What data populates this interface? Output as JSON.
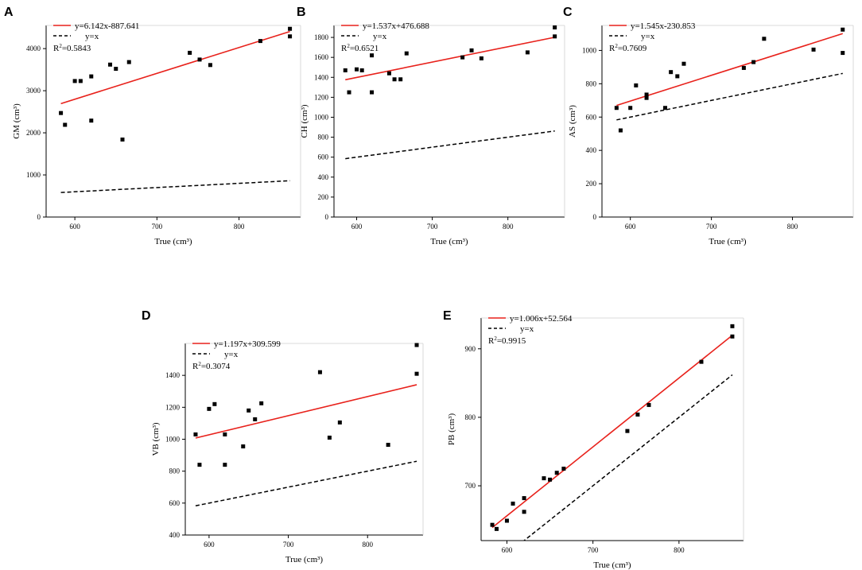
{
  "chart_data": [
    {
      "type": "scatter",
      "panel": "A",
      "xlabel": "True (cm³)",
      "ylabel": "GM (cm³)",
      "xlim": [
        565,
        875
      ],
      "ylim": [
        0,
        4550
      ],
      "xticks": [
        600,
        700,
        800
      ],
      "yticks": [
        0,
        1000,
        2000,
        3000,
        4000
      ],
      "legend": {
        "fit": "y=6.142x-887.641",
        "identity": "y=x",
        "r2": "0.5843"
      },
      "fit": {
        "slope": 6.142,
        "intercept": -887.641
      },
      "points": [
        [
          583,
          2470
        ],
        [
          588,
          2190
        ],
        [
          600,
          3230
        ],
        [
          607,
          3230
        ],
        [
          620,
          3340
        ],
        [
          620,
          2290
        ],
        [
          643,
          3620
        ],
        [
          650,
          3520
        ],
        [
          658,
          1840
        ],
        [
          666,
          3680
        ],
        [
          740,
          3900
        ],
        [
          752,
          3740
        ],
        [
          765,
          3610
        ],
        [
          826,
          4180
        ],
        [
          862,
          4470
        ],
        [
          862,
          4290
        ]
      ]
    },
    {
      "type": "scatter",
      "panel": "B",
      "xlabel": "True (cm³)",
      "ylabel": "CH (cm³)",
      "xlim": [
        570,
        875
      ],
      "ylim": [
        0,
        1920
      ],
      "xticks": [
        600,
        700,
        800
      ],
      "yticks": [
        0,
        200,
        400,
        600,
        800,
        1000,
        1200,
        1400,
        1600,
        1800
      ],
      "legend": {
        "fit": "y=1.537x+476.688",
        "identity": "y=x",
        "r2": "0.6521"
      },
      "fit": {
        "slope": 1.537,
        "intercept": 476.688
      },
      "points": [
        [
          585,
          1470
        ],
        [
          590,
          1250
        ],
        [
          600,
          1480
        ],
        [
          607,
          1470
        ],
        [
          620,
          1620
        ],
        [
          620,
          1250
        ],
        [
          643,
          1440
        ],
        [
          650,
          1380
        ],
        [
          658,
          1380
        ],
        [
          666,
          1640
        ],
        [
          740,
          1600
        ],
        [
          752,
          1670
        ],
        [
          765,
          1590
        ],
        [
          826,
          1650
        ],
        [
          862,
          1900
        ],
        [
          862,
          1810
        ]
      ]
    },
    {
      "type": "scatter",
      "panel": "C",
      "xlabel": "True (cm³)",
      "ylabel": "AS (cm³)",
      "xlim": [
        565,
        875
      ],
      "ylim": [
        0,
        1150
      ],
      "xticks": [
        600,
        700,
        800
      ],
      "yticks": [
        0,
        200,
        400,
        600,
        800,
        1000
      ],
      "legend": {
        "fit": "y=1.545x-230.853",
        "identity": "y=x",
        "r2": "0.7609"
      },
      "fit": {
        "slope": 1.545,
        "intercept": -230.853
      },
      "points": [
        [
          583,
          655
        ],
        [
          588,
          520
        ],
        [
          600,
          655
        ],
        [
          607,
          790
        ],
        [
          620,
          715
        ],
        [
          620,
          735
        ],
        [
          643,
          655
        ],
        [
          650,
          870
        ],
        [
          658,
          845
        ],
        [
          666,
          920
        ],
        [
          740,
          895
        ],
        [
          752,
          930
        ],
        [
          765,
          1070
        ],
        [
          826,
          1005
        ],
        [
          862,
          1125
        ],
        [
          862,
          985
        ]
      ]
    },
    {
      "type": "scatter",
      "panel": "D",
      "xlabel": "True (cm³)",
      "ylabel": "VB (cm³)",
      "xlim": [
        570,
        870
      ],
      "ylim": [
        400,
        1600
      ],
      "xticks": [
        600,
        700,
        800
      ],
      "yticks": [
        400,
        600,
        800,
        1000,
        1200,
        1400
      ],
      "legend": {
        "fit": "y=1.197x+309.599",
        "identity": "y=x",
        "r2": "0.3074"
      },
      "fit": {
        "slope": 1.197,
        "intercept": 309.599
      },
      "points": [
        [
          583,
          1030
        ],
        [
          588,
          840
        ],
        [
          600,
          1190
        ],
        [
          607,
          1220
        ],
        [
          620,
          1030
        ],
        [
          620,
          840
        ],
        [
          643,
          955
        ],
        [
          650,
          1180
        ],
        [
          658,
          1125
        ],
        [
          666,
          1225
        ],
        [
          740,
          1420
        ],
        [
          752,
          1010
        ],
        [
          765,
          1105
        ],
        [
          826,
          965
        ],
        [
          862,
          1590
        ],
        [
          862,
          1410
        ]
      ]
    },
    {
      "type": "scatter",
      "panel": "E",
      "xlabel": "True (cm³)",
      "ylabel": "PB (cm³)",
      "xlim": [
        570,
        875
      ],
      "ylim": [
        620,
        945
      ],
      "xticks": [
        600,
        700,
        800
      ],
      "yticks": [
        700,
        800,
        900
      ],
      "legend": {
        "fit": "y=1.006x+52.564",
        "identity": "y=x",
        "r2": "0.9915"
      },
      "fit": {
        "slope": 1.006,
        "intercept": 52.564
      },
      "points": [
        [
          583,
          643
        ],
        [
          588,
          637
        ],
        [
          600,
          649
        ],
        [
          607,
          674
        ],
        [
          620,
          662
        ],
        [
          620,
          682
        ],
        [
          643,
          711
        ],
        [
          650,
          709
        ],
        [
          658,
          719
        ],
        [
          666,
          725
        ],
        [
          740,
          780
        ],
        [
          752,
          804
        ],
        [
          765,
          818
        ],
        [
          826,
          881
        ],
        [
          862,
          933
        ],
        [
          862,
          918
        ]
      ]
    }
  ]
}
